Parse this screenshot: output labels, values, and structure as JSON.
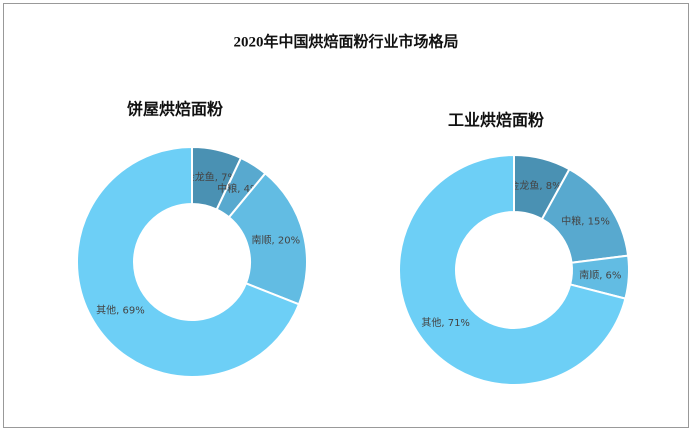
{
  "title": "2020年中国烘焙面粉行业市场格局",
  "chart_data": [
    {
      "type": "donut",
      "title": "饼屋烘焙面粉",
      "values": [
        7,
        4,
        20,
        69
      ],
      "value_labels": [
        "金龙鱼, 7%",
        "中粮, 4%",
        "南顺, 20%",
        "其他, 69%"
      ],
      "colors": [
        "#4a91b3",
        "#58a9cf",
        "#62bce3",
        "#6dcff6"
      ]
    },
    {
      "type": "donut",
      "title": "工业烘焙面粉",
      "values": [
        8,
        15,
        6,
        71
      ],
      "value_labels": [
        "金龙鱼, 8%",
        "中粮, 15%",
        "南顺, 6%",
        "其他, 71%"
      ],
      "colors": [
        "#4a91b3",
        "#58a9cf",
        "#62bce3",
        "#6dcff6"
      ]
    }
  ]
}
